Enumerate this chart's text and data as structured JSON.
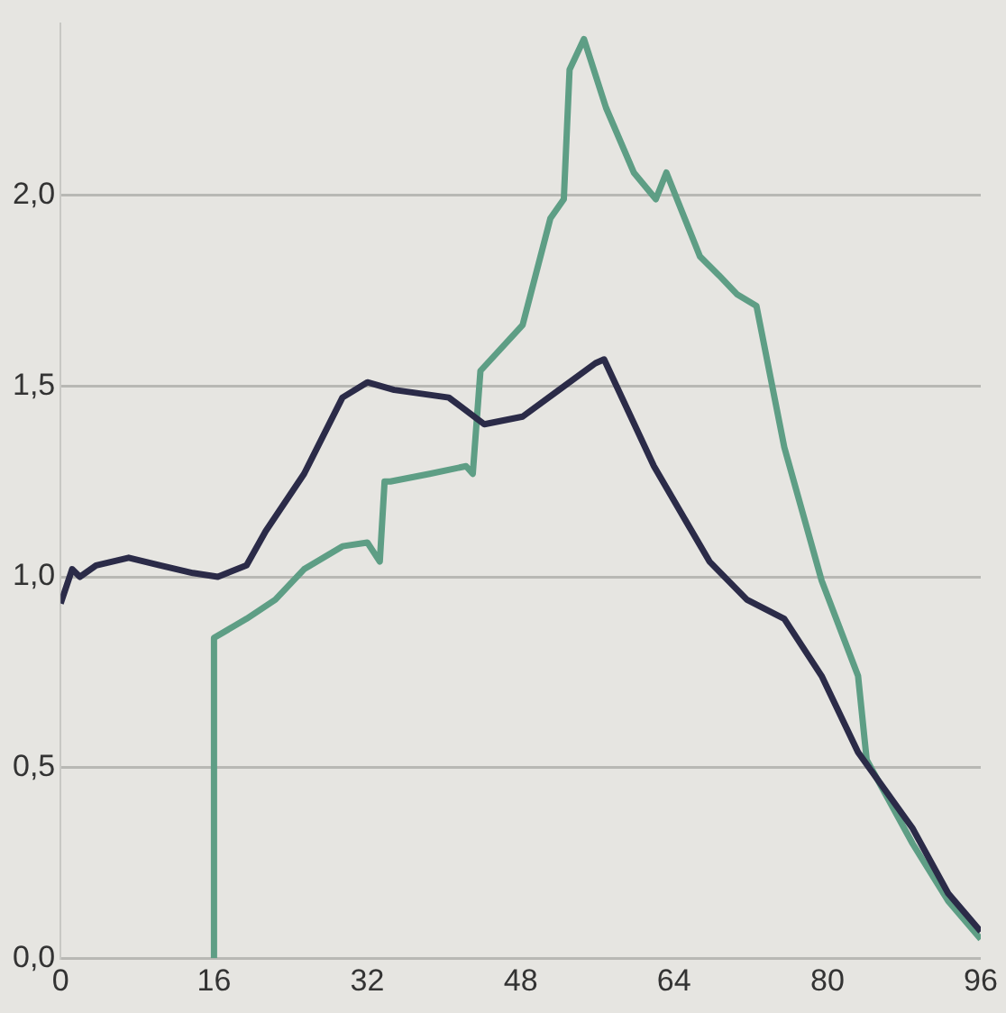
{
  "chart_data": {
    "type": "line",
    "xlim": [
      0,
      96
    ],
    "xticks": [
      0,
      16,
      32,
      48,
      64,
      80,
      96
    ],
    "ylim": [
      0,
      2.45
    ],
    "yticks": [
      {
        "value": 0,
        "label": "0,0"
      },
      {
        "value": 0.5,
        "label": "0,5"
      },
      {
        "value": 1,
        "label": "1,0"
      },
      {
        "value": 1.5,
        "label": "1,5"
      },
      {
        "value": 2,
        "label": "2,0"
      }
    ],
    "grid": "y",
    "legend": false,
    "marker": "none",
    "line_style": "solid",
    "series": [
      {
        "color": "#2b2b48",
        "x": [
          0,
          1.2,
          2,
          3.7,
          7.1,
          10.4,
          13.8,
          16.4,
          19.4,
          21.4,
          25.4,
          29.4,
          32,
          34.8,
          40.5,
          44.2,
          48.2,
          52,
          55.8,
          56.7,
          61.9,
          67.7,
          71.6,
          75.5,
          79.4,
          83.2,
          88.9,
          92.6,
          96
        ],
        "values": [
          0.93,
          1.02,
          1.0,
          1.03,
          1.05,
          1.03,
          1.01,
          1.0,
          1.03,
          1.12,
          1.27,
          1.47,
          1.51,
          1.49,
          1.47,
          1.4,
          1.42,
          1.49,
          1.56,
          1.57,
          1.29,
          1.04,
          0.94,
          0.89,
          0.74,
          0.54,
          0.34,
          0.17,
          0.07
        ]
      },
      {
        "color": "#5e9e85",
        "x": [
          16,
          16,
          19.4,
          22.4,
          25.4,
          29.4,
          32,
          33.3,
          33.8,
          34.4,
          38.5,
          42.3,
          43,
          43.8,
          48.2,
          51.1,
          52.5,
          53.1,
          54.6,
          56.9,
          59.8,
          62.1,
          63.2,
          66.7,
          68.7,
          70.6,
          72.6,
          75.5,
          79.4,
          83.2,
          84.1,
          88.9,
          92.6,
          96
        ],
        "values": [
          0,
          0.84,
          0.89,
          0.94,
          1.02,
          1.08,
          1.09,
          1.04,
          1.25,
          1.25,
          1.27,
          1.29,
          1.27,
          1.54,
          1.66,
          1.94,
          1.99,
          2.33,
          2.41,
          2.23,
          2.06,
          1.99,
          2.06,
          1.84,
          1.79,
          1.74,
          1.71,
          1.34,
          0.99,
          0.74,
          0.52,
          0.3,
          0.15,
          0.05
        ]
      }
    ]
  }
}
